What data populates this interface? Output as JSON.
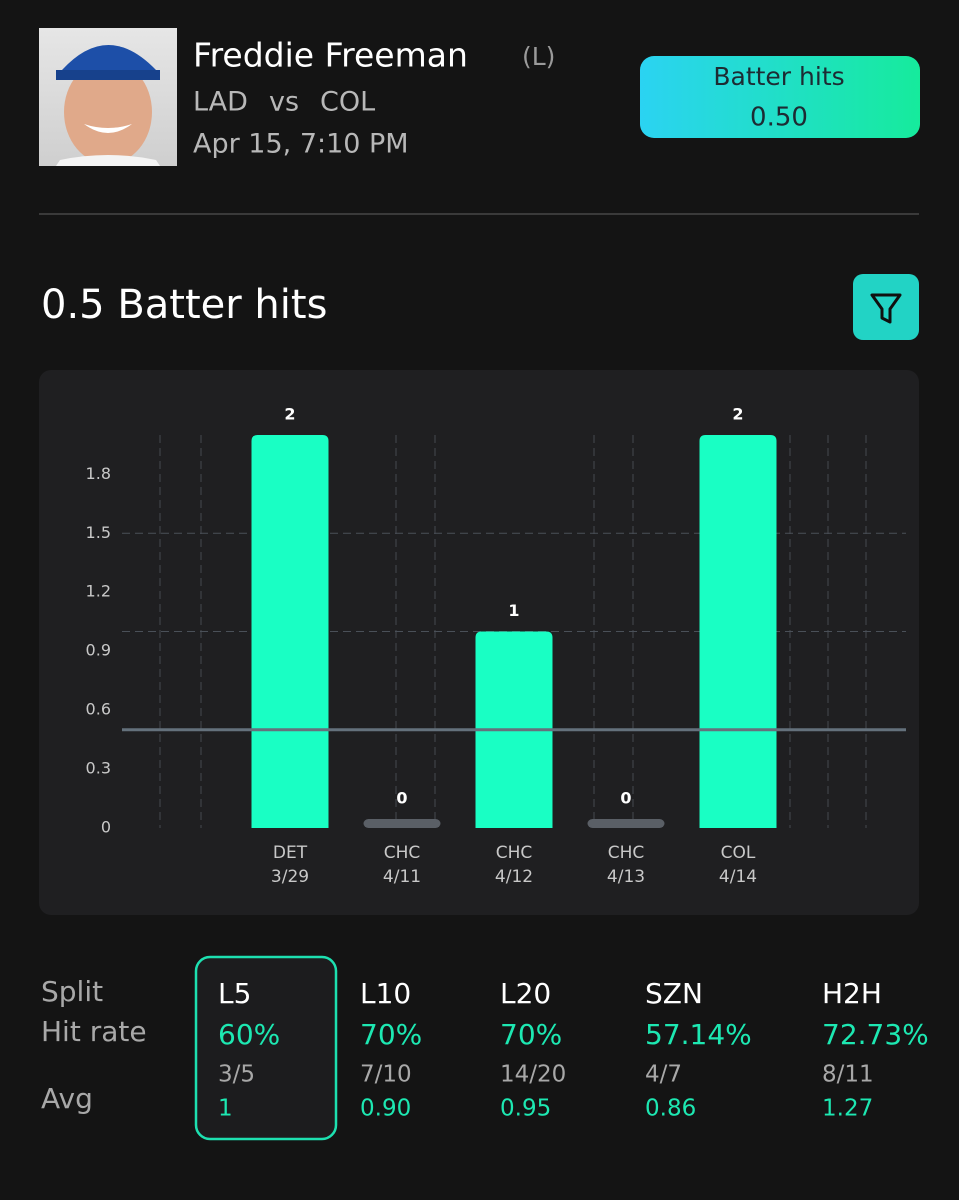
{
  "header": {
    "player": "Freddie Freeman",
    "hand": "(L)",
    "team": "LAD",
    "vs": "vs",
    "opponent": "COL",
    "datetime": "Apr 15, 7:10 PM",
    "badge": {
      "label": "Batter hits",
      "value": "0.50"
    }
  },
  "section_title": "0.5 Batter hits",
  "chart_data": {
    "type": "bar",
    "categories": [
      "DET",
      "CHC",
      "CHC",
      "CHC",
      "COL"
    ],
    "dates": [
      "3/29",
      "4/11",
      "4/12",
      "4/13",
      "4/14"
    ],
    "values": [
      2,
      0,
      1,
      0,
      2
    ],
    "color": "#19ffc4",
    "ylim": [
      0,
      2
    ],
    "yticks": [
      0,
      0.3,
      0.6,
      0.9,
      1.2,
      1.5,
      1.8
    ],
    "threshold": 0.5,
    "reference_lines": [
      1,
      1.5
    ]
  },
  "splits": {
    "row_labels": [
      "Split",
      "Hit rate",
      "Avg"
    ],
    "selected": 0,
    "columns": [
      {
        "split": "L5",
        "hit_rate": "60%",
        "count": "3/5",
        "avg": "1"
      },
      {
        "split": "L10",
        "hit_rate": "70%",
        "count": "7/10",
        "avg": "0.90"
      },
      {
        "split": "L20",
        "hit_rate": "70%",
        "count": "14/20",
        "avg": "0.95"
      },
      {
        "split": "SZN",
        "hit_rate": "57.14%",
        "count": "4/7",
        "avg": "0.86"
      },
      {
        "split": "H2H",
        "hit_rate": "72.73%",
        "count": "8/11",
        "avg": "1.27"
      }
    ]
  }
}
